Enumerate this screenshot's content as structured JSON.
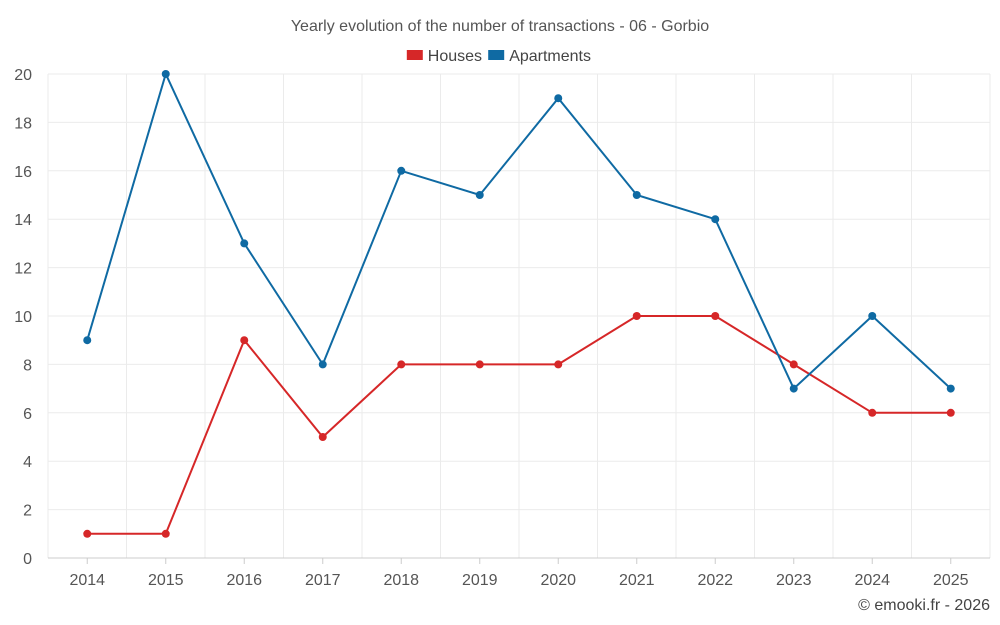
{
  "chart_data": {
    "type": "line",
    "title": "Yearly evolution of the number of transactions - 06 - Gorbio",
    "categories": [
      "2014",
      "2015",
      "2016",
      "2017",
      "2018",
      "2019",
      "2020",
      "2021",
      "2022",
      "2023",
      "2024",
      "2025"
    ],
    "series": [
      {
        "name": "Houses",
        "color": "#d62728",
        "values": [
          1,
          1,
          9,
          5,
          8,
          8,
          8,
          10,
          10,
          8,
          6,
          6
        ]
      },
      {
        "name": "Apartments",
        "color": "#0f6aa3",
        "values": [
          9,
          20,
          13,
          8,
          16,
          15,
          19,
          15,
          14,
          7,
          10,
          7
        ]
      }
    ],
    "ylim": [
      0,
      20
    ],
    "yticks": [
      0,
      2,
      4,
      6,
      8,
      10,
      12,
      14,
      16,
      18,
      20
    ],
    "xlabel": "",
    "ylabel": "",
    "grid": true,
    "legend": "top-center"
  },
  "credit": "© emooki.fr - 2026"
}
